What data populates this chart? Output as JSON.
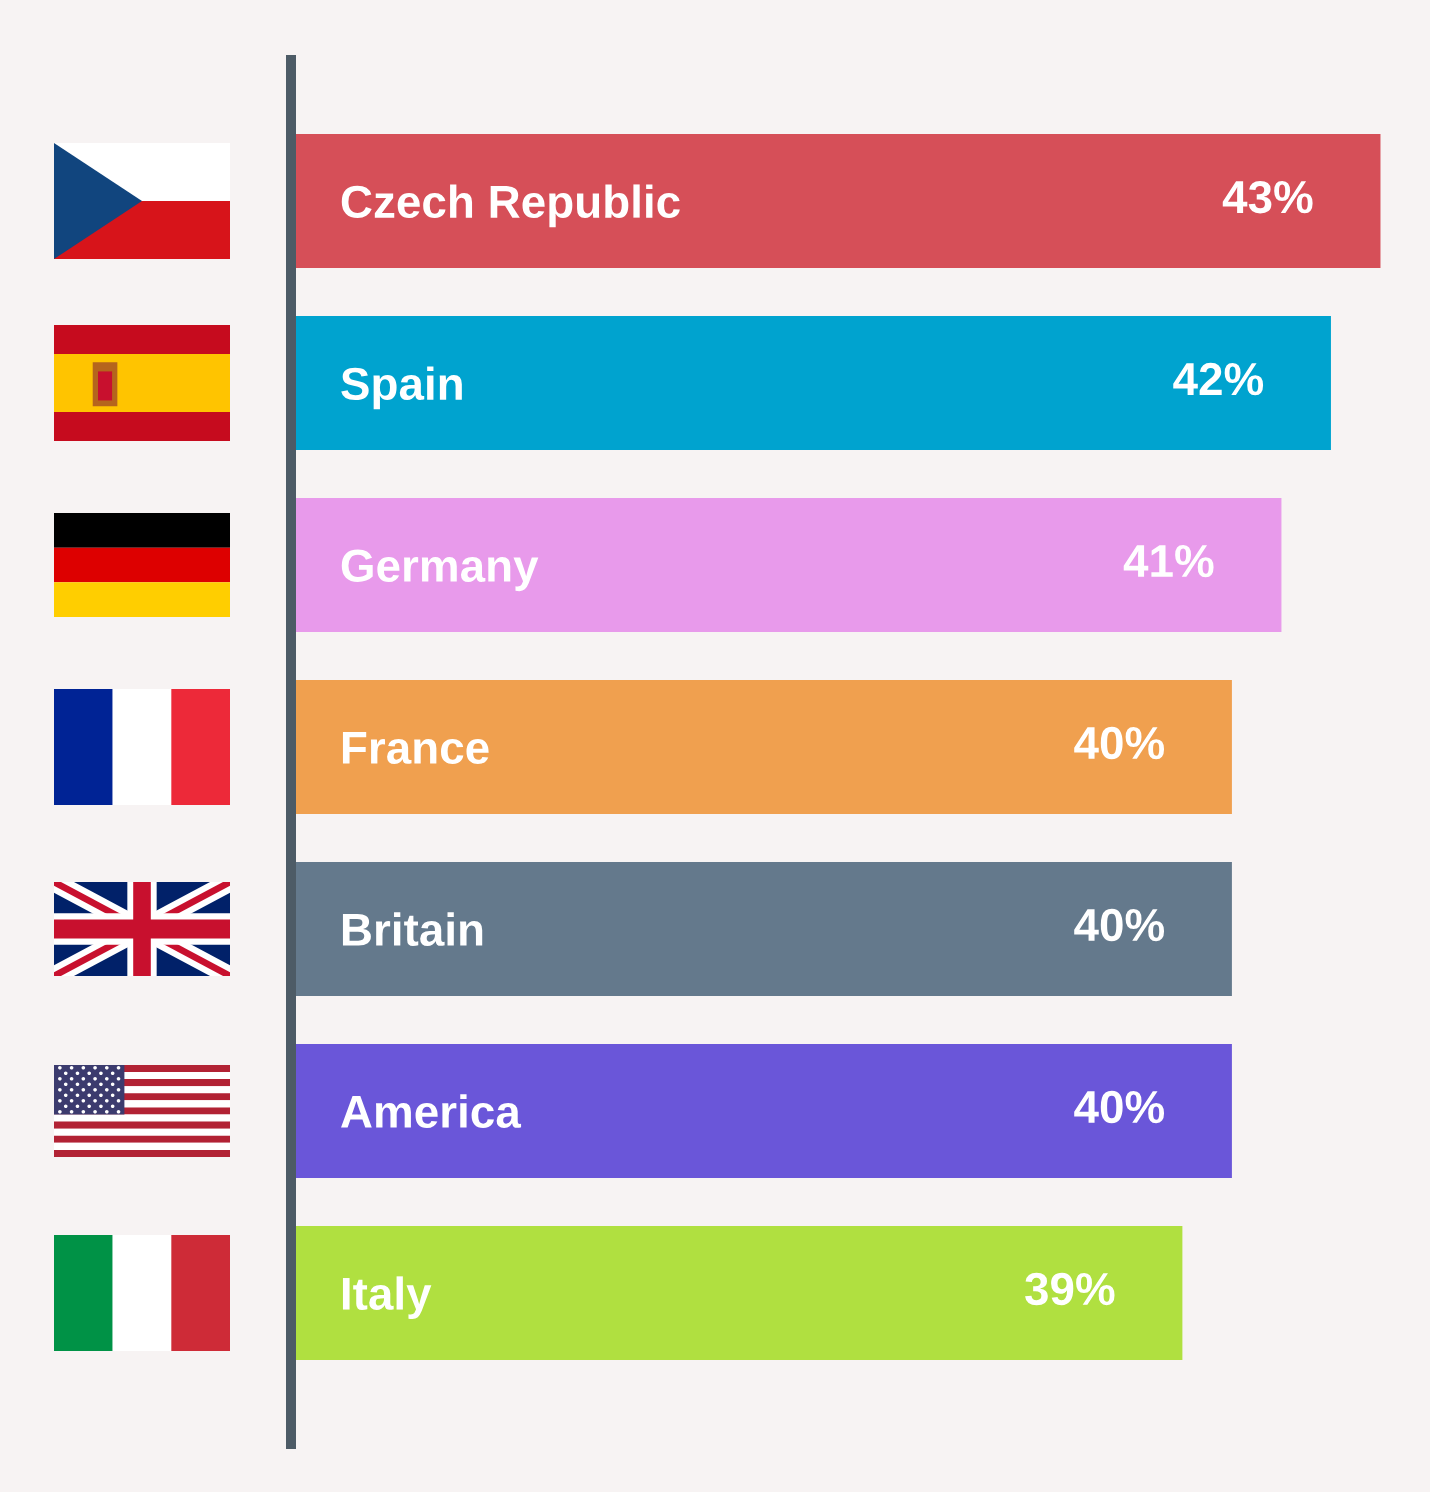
{
  "chart_data": {
    "type": "bar",
    "orientation": "horizontal",
    "categories": [
      "Czech Republic",
      "Spain",
      "Germany",
      "France",
      "Britain",
      "America",
      "Italy"
    ],
    "values": [
      43,
      42,
      41,
      40,
      40,
      40,
      39
    ],
    "colors": [
      "#d64f58",
      "#00a3cf",
      "#e89aeb",
      "#f0a04f",
      "#64798c",
      "#6a56d9",
      "#b0e040"
    ],
    "value_labels": [
      "43%",
      "42%",
      "41%",
      "40%",
      "40%",
      "40%",
      "39%"
    ],
    "xlim": [
      21,
      44
    ],
    "tick_labels": "y"
  }
}
